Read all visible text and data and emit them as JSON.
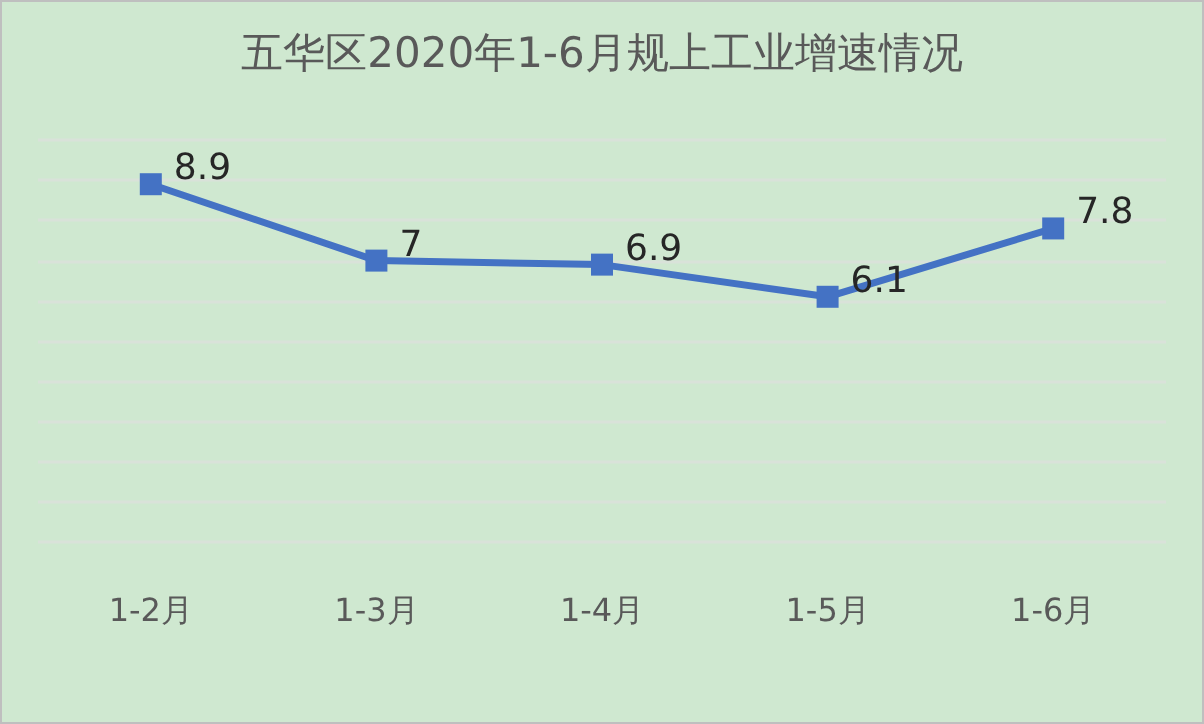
{
  "chart_data": {
    "type": "line",
    "title": "五华区2020年1-6月规上工业增速情况",
    "categories": [
      "1-2月",
      "1-3月",
      "1-4月",
      "1-5月",
      "1-6月"
    ],
    "series": [
      {
        "color": "#4472c4",
        "values": [
          8.9,
          7,
          6.9,
          6.1,
          7.8
        ]
      }
    ],
    "ylim": [
      0,
      10
    ],
    "yticks": [
      {
        "value": 0,
        "label": null
      },
      {
        "value": 1,
        "label": null
      },
      {
        "value": 2,
        "label": null
      },
      {
        "value": 3,
        "label": null
      },
      {
        "value": 4,
        "label": null
      },
      {
        "value": 5,
        "label": null
      },
      {
        "value": 6,
        "label": null
      },
      {
        "value": 7,
        "label": null
      },
      {
        "value": 8,
        "label": null
      },
      {
        "value": 9,
        "label": null
      },
      {
        "value": 10,
        "label": null
      }
    ],
    "tick_labels": "x",
    "grid": "y",
    "marker": "square",
    "line_style": "solid",
    "data_labels": true
  }
}
